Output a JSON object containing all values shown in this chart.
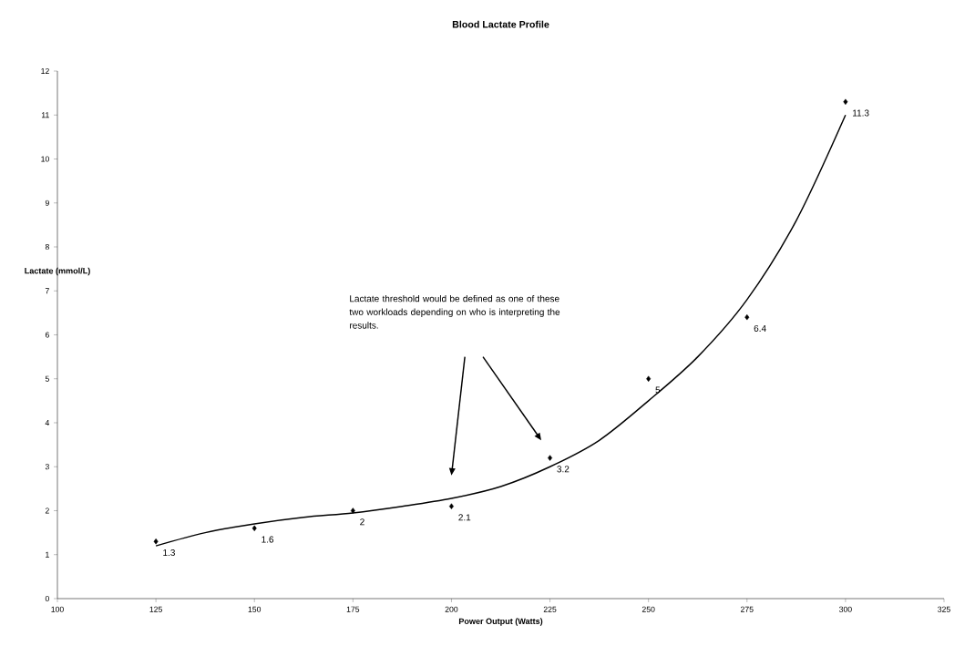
{
  "chart_data": {
    "type": "scatter",
    "title": "Blood Lactate Profile",
    "xlabel": "Power Output (Watts)",
    "ylabel": "Lactate (mmol/L)",
    "x": [
      125,
      150,
      175,
      200,
      225,
      250,
      275,
      300
    ],
    "series": [
      {
        "color": "#000000",
        "marker": "diamond",
        "values": [
          1.3,
          1.6,
          2,
          2.1,
          3.2,
          5,
          6.4,
          11.3
        ],
        "value_labels": [
          "1.3",
          "1.6",
          "2",
          "2.1",
          "3.2",
          "5",
          "6.4",
          "11.3"
        ]
      },
      {
        "type": "line",
        "color": "#000000",
        "marker": "none",
        "line_style": "solid",
        "x": [
          125,
          137.5,
          150,
          162.5,
          175,
          187.5,
          200,
          212.5,
          225,
          237.5,
          250,
          262.5,
          275,
          287.5,
          300
        ],
        "values": [
          1.2,
          1.5,
          1.7,
          1.85,
          1.95,
          2.1,
          2.28,
          2.55,
          3.0,
          3.6,
          4.5,
          5.5,
          6.8,
          8.6,
          11.0
        ]
      }
    ],
    "annotations": [
      "Lactate threshold would be defined as one of these two workloads depending on who is interpreting the results."
    ],
    "xlim": [
      100,
      325
    ],
    "xticks": [
      100,
      125,
      150,
      175,
      200,
      225,
      250,
      275,
      300,
      325
    ],
    "ylim": [
      0,
      12
    ],
    "yticks": [
      0,
      1,
      2,
      3,
      4,
      5,
      6,
      7,
      8,
      9,
      10,
      11,
      12
    ],
    "grid": false
  }
}
